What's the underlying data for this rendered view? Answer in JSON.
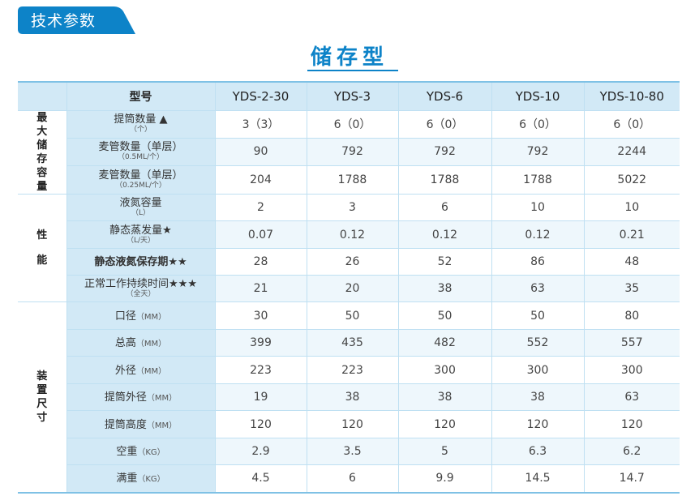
{
  "tab_label": "技术参数",
  "title": "储存型",
  "header": {
    "label": "型号",
    "models": [
      "YDS-2-30",
      "YDS-3",
      "YDS-6",
      "YDS-10",
      "YDS-10-80"
    ]
  },
  "groups": {
    "capacity": [
      "最",
      "大",
      "储",
      "存",
      "容",
      "量"
    ],
    "performance": [
      "性",
      "能"
    ],
    "dimensions": [
      "装",
      "置",
      "尺",
      "寸"
    ]
  },
  "rows": [
    {
      "label": "提筒数量 ▲",
      "sub": "（个）",
      "values": [
        "3（3）",
        "6（0）",
        "6（0）",
        "6（0）",
        "6（0）"
      ]
    },
    {
      "label": "麦管数量（单层）",
      "sub": "（0.5ML/个）",
      "values": [
        "90",
        "792",
        "792",
        "792",
        "2244"
      ]
    },
    {
      "label": "麦管数量（单层）",
      "sub": "（0.25ML/个）",
      "values": [
        "204",
        "1788",
        "1788",
        "1788",
        "5022"
      ]
    },
    {
      "label": "液氮容量",
      "sub": "（L）",
      "values": [
        "2",
        "3",
        "6",
        "10",
        "10"
      ]
    },
    {
      "label": "静态蒸发量★",
      "sub": "（L/天）",
      "values": [
        "0.07",
        "0.12",
        "0.12",
        "0.12",
        "0.21"
      ]
    },
    {
      "label": "静态液氮保存期★★",
      "sub": "",
      "values": [
        "28",
        "26",
        "52",
        "86",
        "48"
      ]
    },
    {
      "label": "正常工作持续时间★★★",
      "sub": "（全天）",
      "values": [
        "21",
        "20",
        "38",
        "63",
        "35"
      ]
    },
    {
      "label": "口径",
      "unit": "（MM）",
      "values": [
        "30",
        "50",
        "50",
        "50",
        "80"
      ]
    },
    {
      "label": "总高",
      "unit": "（MM）",
      "values": [
        "399",
        "435",
        "482",
        "552",
        "557"
      ]
    },
    {
      "label": "外径",
      "unit": "（MM）",
      "values": [
        "223",
        "223",
        "300",
        "300",
        "300"
      ]
    },
    {
      "label": "提筒外径",
      "unit": "（MM）",
      "values": [
        "19",
        "38",
        "38",
        "38",
        "63"
      ]
    },
    {
      "label": "提筒高度",
      "unit": "（MM）",
      "values": [
        "120",
        "120",
        "120",
        "120",
        "120"
      ]
    },
    {
      "label": "空重",
      "unit": "（KG）",
      "values": [
        "2.9",
        "3.5",
        "5",
        "6.3",
        "6.2"
      ]
    },
    {
      "label": "满重",
      "unit": "（KG）",
      "values": [
        "4.5",
        "6",
        "9.9",
        "14.5",
        "14.7"
      ]
    }
  ],
  "colors": {
    "accent": "#0d83c8",
    "header_bg": "#d2e9f6",
    "border": "#bfe0f2"
  }
}
